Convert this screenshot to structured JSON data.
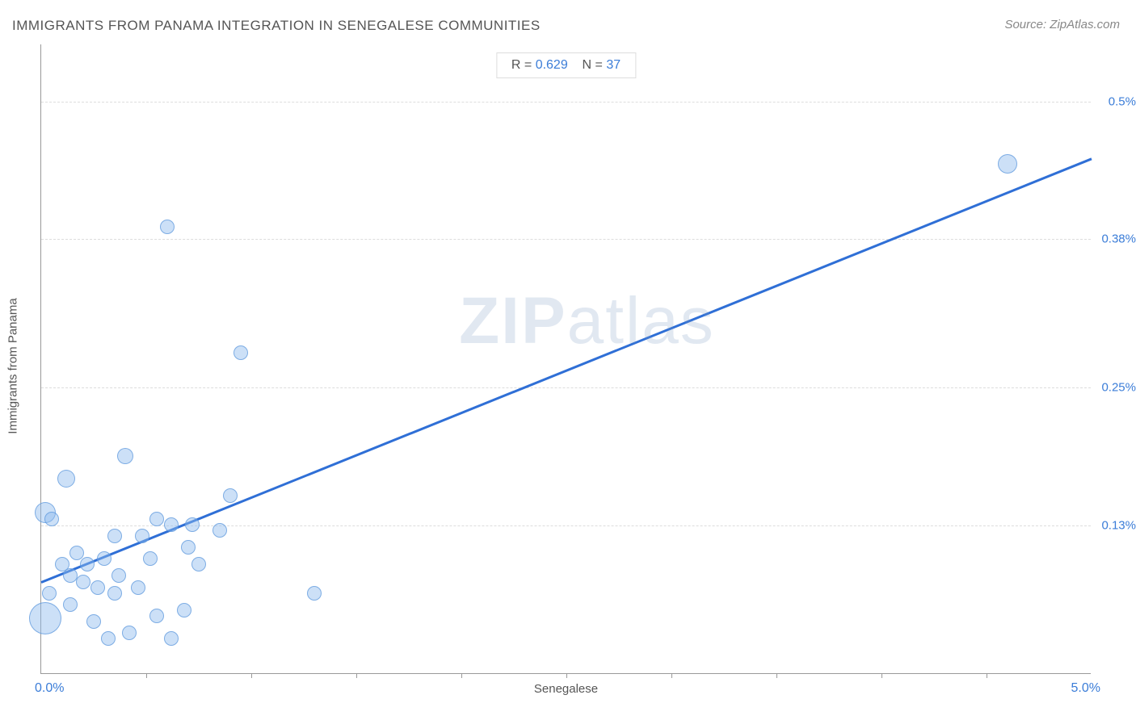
{
  "title": "IMMIGRANTS FROM PANAMA INTEGRATION IN SENEGALESE COMMUNITIES",
  "source": "Source: ZipAtlas.com",
  "watermark_zip": "ZIP",
  "watermark_atlas": "atlas",
  "chart": {
    "type": "scatter",
    "x_axis_title": "Senegalese",
    "y_axis_title": "Immigrants from Panama",
    "xlim": [
      0.0,
      5.0
    ],
    "ylim": [
      0.0,
      0.55
    ],
    "x_label_min": "0.0%",
    "x_label_max": "5.0%",
    "y_ticks": [
      {
        "value": 0.13,
        "label": "0.13%"
      },
      {
        "value": 0.25,
        "label": "0.25%"
      },
      {
        "value": 0.38,
        "label": "0.38%"
      },
      {
        "value": 0.5,
        "label": "0.5%"
      }
    ],
    "x_ticks_minor": [
      0.5,
      1.0,
      1.5,
      2.0,
      2.5,
      3.0,
      3.5,
      4.0,
      4.5
    ],
    "grid_color": "#dddddd",
    "background_color": "#ffffff",
    "point_fill": "rgba(142,186,238,0.45)",
    "point_stroke": "rgba(90,150,220,0.7)",
    "trend_color": "#2f6fd6",
    "trend_width": 3,
    "trend_line": {
      "x1": 0.0,
      "y1": 0.08,
      "x2": 5.0,
      "y2": 0.45
    },
    "stats": {
      "r_label": "R =",
      "r_value": "0.629",
      "n_label": "N =",
      "n_value": "37"
    },
    "points": [
      {
        "x": 0.02,
        "y": 0.048,
        "r": 20
      },
      {
        "x": 0.02,
        "y": 0.14,
        "r": 13
      },
      {
        "x": 0.04,
        "y": 0.07,
        "r": 9
      },
      {
        "x": 0.05,
        "y": 0.135,
        "r": 9
      },
      {
        "x": 0.1,
        "y": 0.095,
        "r": 9
      },
      {
        "x": 0.12,
        "y": 0.17,
        "r": 11
      },
      {
        "x": 0.14,
        "y": 0.06,
        "r": 9
      },
      {
        "x": 0.14,
        "y": 0.085,
        "r": 9
      },
      {
        "x": 0.17,
        "y": 0.105,
        "r": 9
      },
      {
        "x": 0.2,
        "y": 0.08,
        "r": 9
      },
      {
        "x": 0.22,
        "y": 0.095,
        "r": 9
      },
      {
        "x": 0.25,
        "y": 0.045,
        "r": 9
      },
      {
        "x": 0.27,
        "y": 0.075,
        "r": 9
      },
      {
        "x": 0.3,
        "y": 0.1,
        "r": 9
      },
      {
        "x": 0.32,
        "y": 0.03,
        "r": 9
      },
      {
        "x": 0.35,
        "y": 0.07,
        "r": 9
      },
      {
        "x": 0.35,
        "y": 0.12,
        "r": 9
      },
      {
        "x": 0.37,
        "y": 0.085,
        "r": 9
      },
      {
        "x": 0.4,
        "y": 0.19,
        "r": 10
      },
      {
        "x": 0.42,
        "y": 0.035,
        "r": 9
      },
      {
        "x": 0.46,
        "y": 0.075,
        "r": 9
      },
      {
        "x": 0.48,
        "y": 0.12,
        "r": 9
      },
      {
        "x": 0.52,
        "y": 0.1,
        "r": 9
      },
      {
        "x": 0.55,
        "y": 0.135,
        "r": 9
      },
      {
        "x": 0.55,
        "y": 0.05,
        "r": 9
      },
      {
        "x": 0.62,
        "y": 0.03,
        "r": 9
      },
      {
        "x": 0.62,
        "y": 0.13,
        "r": 9
      },
      {
        "x": 0.6,
        "y": 0.39,
        "r": 9
      },
      {
        "x": 0.68,
        "y": 0.055,
        "r": 9
      },
      {
        "x": 0.7,
        "y": 0.11,
        "r": 9
      },
      {
        "x": 0.72,
        "y": 0.13,
        "r": 9
      },
      {
        "x": 0.75,
        "y": 0.095,
        "r": 9
      },
      {
        "x": 0.85,
        "y": 0.125,
        "r": 9
      },
      {
        "x": 0.9,
        "y": 0.155,
        "r": 9
      },
      {
        "x": 0.95,
        "y": 0.28,
        "r": 9
      },
      {
        "x": 1.3,
        "y": 0.07,
        "r": 9
      },
      {
        "x": 4.6,
        "y": 0.445,
        "r": 12
      }
    ]
  }
}
